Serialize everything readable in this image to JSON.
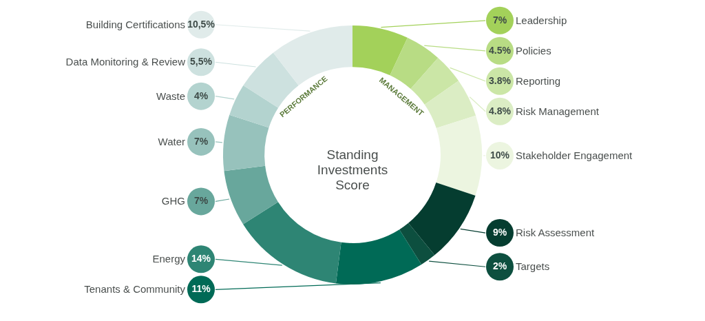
{
  "chart_data": {
    "type": "donut",
    "title": "Standing Investments Score",
    "categories": [
      "Leadership",
      "Policies",
      "Reporting",
      "Risk Management",
      "Stakeholder Engagement",
      "Risk Assessment",
      "Targets",
      "Tenants & Community",
      "Energy",
      "GHG",
      "Water",
      "Waste",
      "Data Monitoring & Review",
      "Building Certifications"
    ],
    "values": [
      7,
      4.5,
      3.8,
      4.8,
      10,
      9,
      2,
      11,
      14,
      7,
      7,
      4,
      5.5,
      10.5
    ],
    "value_labels": [
      "7%",
      "4.5%",
      "3.8%",
      "4.8%",
      "10%",
      "9%",
      "2%",
      "11%",
      "14%",
      "7%",
      "7%",
      "4%",
      "5,5%",
      "10,5%"
    ],
    "colors": [
      "#a3d15a",
      "#b8dc84",
      "#cbe6a6",
      "#dbedc4",
      "#ecf5e0",
      "#053d30",
      "#0d4f3f",
      "#006a56",
      "#2e8574",
      "#68a79c",
      "#97c2bc",
      "#b3d3cf",
      "#cde1df",
      "#e0ebea"
    ],
    "annotations": [
      "MANAGEMENT",
      "PERFORMANCE"
    ]
  }
}
